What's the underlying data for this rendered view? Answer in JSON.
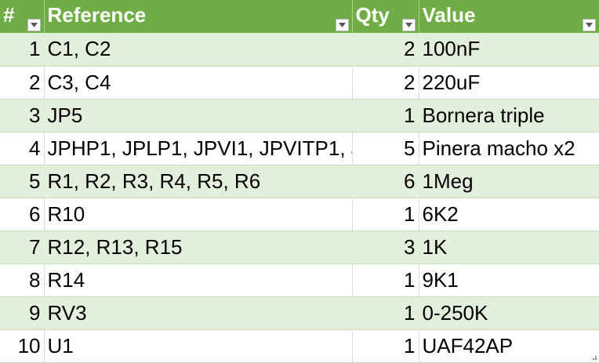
{
  "header": {
    "num_label": "#",
    "reference_label": "Reference",
    "qty_label": "Qty",
    "value_label": "Value"
  },
  "rows": [
    {
      "num": "1",
      "reference": "C1, C2",
      "qty": "2",
      "value": "100nF"
    },
    {
      "num": "2",
      "reference": "C3, C4",
      "qty": "2",
      "value": "220uF"
    },
    {
      "num": "3",
      "reference": "JP5",
      "qty": "1",
      "value": "Bornera triple"
    },
    {
      "num": "4",
      "reference": "JPHP1, JPLP1, JPVI1, JPVITP1, J",
      "qty": "5",
      "value": "Pinera macho x2"
    },
    {
      "num": "5",
      "reference": "R1, R2, R3, R4, R5, R6",
      "qty": "6",
      "value": "1Meg"
    },
    {
      "num": "6",
      "reference": "R10",
      "qty": "1",
      "value": "6K2"
    },
    {
      "num": "7",
      "reference": "R12, R13, R15",
      "qty": "3",
      "value": "1K"
    },
    {
      "num": "8",
      "reference": "R14",
      "qty": "1",
      "value": "9K1"
    },
    {
      "num": "9",
      "reference": "RV3",
      "qty": "1",
      "value": "0-250K"
    },
    {
      "num": "10",
      "reference": "U1",
      "qty": "1",
      "value": "UAF42AP"
    }
  ],
  "colors": {
    "header_bg": "#70ad47",
    "band_bg": "#e2efda"
  },
  "icons": {
    "filter": "filter-dropdown-icon",
    "resize": "table-resize-handle-icon"
  }
}
